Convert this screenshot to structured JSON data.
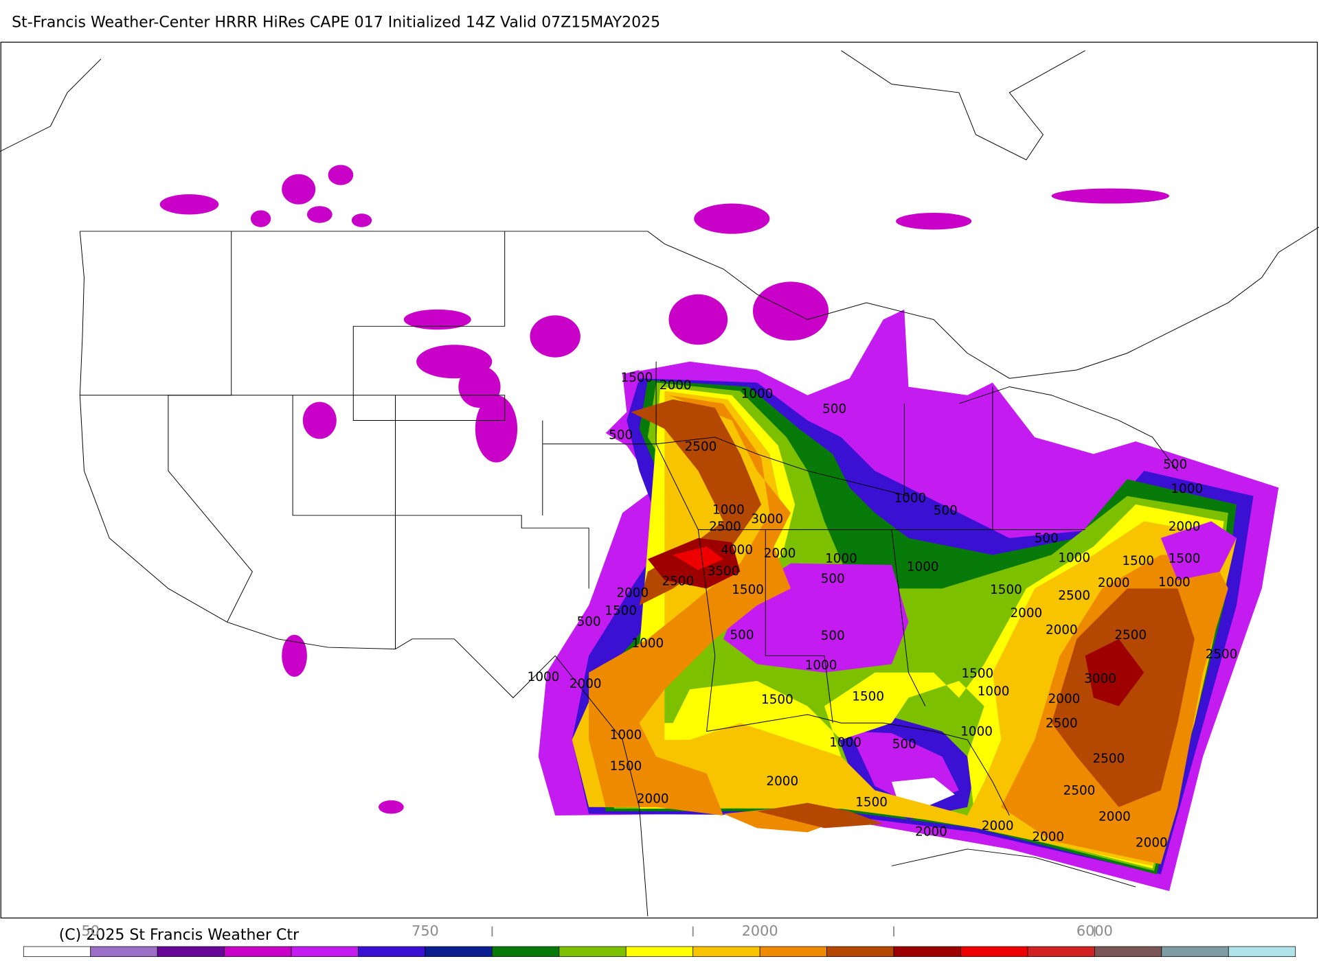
{
  "header": {
    "title": "St-Francis Weather-Center HRRR HiRes CAPE  017 Initialized  14Z Valid 07Z15MAY2025"
  },
  "map": {
    "contour_labels": [
      1500,
      2000,
      1000,
      500,
      500,
      2500,
      1000,
      500,
      1000,
      3000,
      2500,
      4000,
      2000,
      1000,
      3500,
      500,
      1000,
      500,
      1000,
      1500,
      1500,
      2000,
      1000,
      2500,
      1500,
      2000,
      1500,
      500,
      1000,
      500,
      500,
      1500,
      2500,
      2000,
      2000,
      2500,
      2500,
      1000,
      2000,
      1000,
      1500,
      1000,
      3000,
      2000,
      1500,
      1500,
      2500,
      1000,
      1000,
      500,
      1000,
      1500,
      2500,
      2000,
      2500,
      2000,
      1500,
      2000,
      2000,
      2000,
      2000,
      2000,
      500,
      1000,
      2000
    ]
  },
  "colorbar": {
    "colors": [
      "#ffffff",
      "#9b6fc6",
      "#66079a",
      "#c800c8",
      "#c41cf0",
      "#3a10d2",
      "#0a1e90",
      "#087a0a",
      "#7cc000",
      "#ffff00",
      "#f8c400",
      "#ee8a00",
      "#b44800",
      "#9e0000",
      "#ee0000",
      "#d02222",
      "#7b5656",
      "#7e9ca4",
      "#b0e2ea"
    ],
    "labels": [
      null,
      "50",
      null,
      null,
      null,
      null,
      "750",
      null,
      null,
      null,
      null,
      "2000",
      null,
      null,
      null,
      null,
      "6000",
      null,
      null,
      null
    ]
  },
  "footer": {
    "copyright": "(C) 2025 St Francis Weather Ctr"
  }
}
